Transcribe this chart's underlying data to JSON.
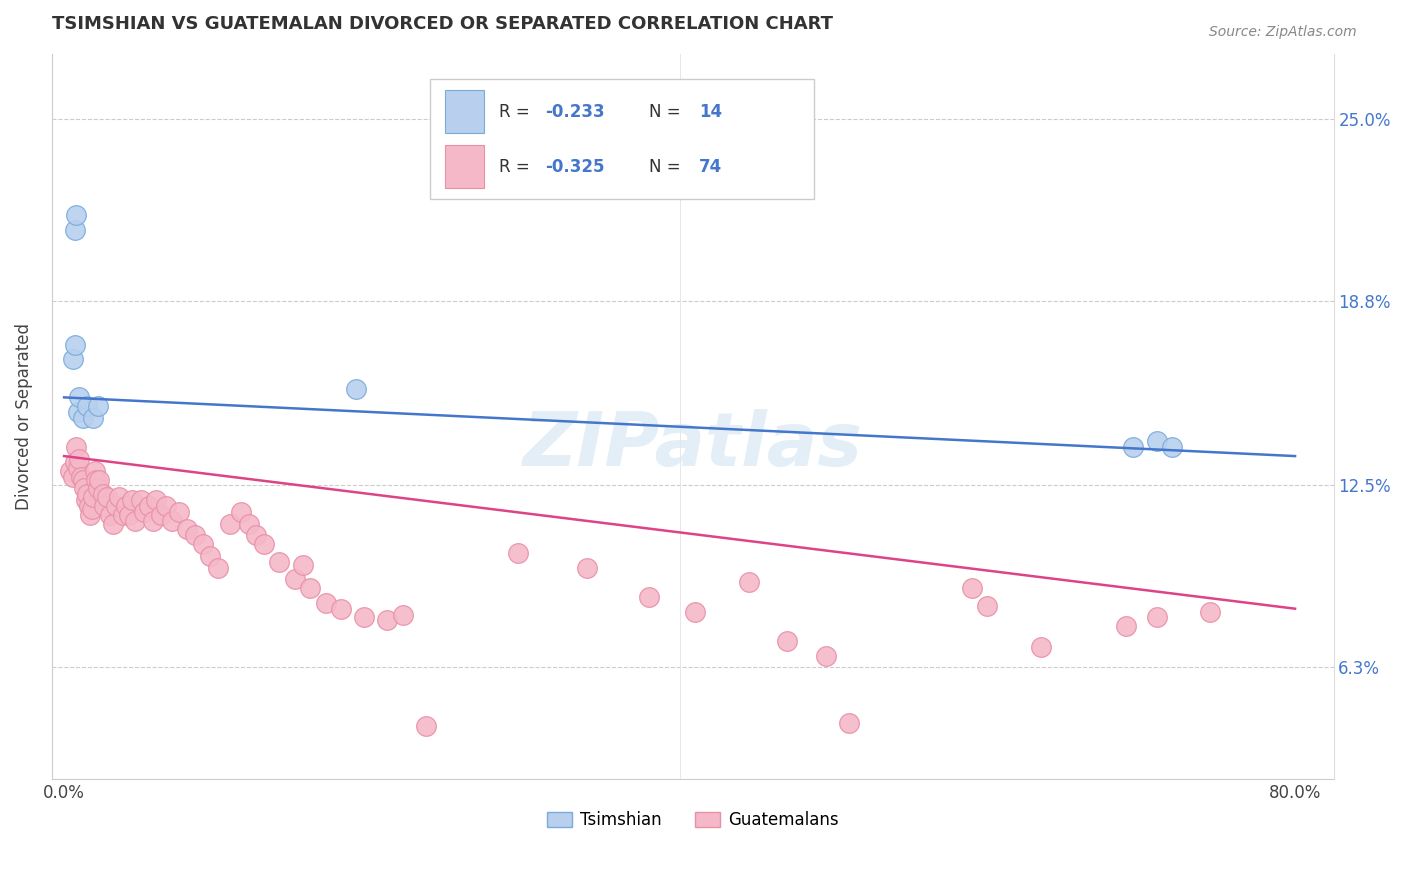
{
  "title": "TSIMSHIAN VS GUATEMALAN DIVORCED OR SEPARATED CORRELATION CHART",
  "source": "Source: ZipAtlas.com",
  "ylabel": "Divorced or Separated",
  "yticks": [
    0.063,
    0.125,
    0.188,
    0.25
  ],
  "ytick_labels": [
    "6.3%",
    "12.5%",
    "18.8%",
    "25.0%"
  ],
  "xlim": [
    -0.008,
    0.825
  ],
  "ylim": [
    0.025,
    0.272
  ],
  "blue_color": "#b8d0ee",
  "blue_edge_color": "#7aabdd",
  "pink_color": "#f5b8c8",
  "pink_edge_color": "#e890a8",
  "blue_line_color": "#4477cc",
  "pink_line_color": "#dd4488",
  "text_color": "#4477cc",
  "watermark": "ZIPatlas",
  "R_blue": -0.233,
  "N_blue": 14,
  "R_pink": -0.325,
  "N_pink": 74,
  "tsimshian_x": [
    0.007,
    0.008,
    0.006,
    0.007,
    0.009,
    0.01,
    0.012,
    0.015,
    0.019,
    0.022,
    0.19,
    0.695,
    0.71,
    0.72
  ],
  "tsimshian_y": [
    0.212,
    0.217,
    0.168,
    0.173,
    0.15,
    0.155,
    0.148,
    0.152,
    0.148,
    0.152,
    0.158,
    0.138,
    0.14,
    0.138
  ],
  "guatemalan_x": [
    0.004,
    0.006,
    0.007,
    0.008,
    0.009,
    0.01,
    0.011,
    0.012,
    0.013,
    0.014,
    0.015,
    0.016,
    0.017,
    0.018,
    0.019,
    0.02,
    0.021,
    0.022,
    0.023,
    0.025,
    0.026,
    0.028,
    0.03,
    0.032,
    0.034,
    0.036,
    0.038,
    0.04,
    0.042,
    0.044,
    0.046,
    0.05,
    0.052,
    0.055,
    0.058,
    0.06,
    0.063,
    0.066,
    0.07,
    0.075,
    0.08,
    0.085,
    0.09,
    0.095,
    0.1,
    0.108,
    0.115,
    0.12,
    0.125,
    0.13,
    0.14,
    0.15,
    0.155,
    0.16,
    0.17,
    0.18,
    0.195,
    0.21,
    0.22,
    0.235,
    0.295,
    0.34,
    0.38,
    0.41,
    0.445,
    0.47,
    0.495,
    0.51,
    0.59,
    0.6,
    0.635,
    0.69,
    0.71,
    0.745
  ],
  "guatemalan_y": [
    0.13,
    0.128,
    0.133,
    0.138,
    0.131,
    0.134,
    0.128,
    0.127,
    0.124,
    0.12,
    0.122,
    0.118,
    0.115,
    0.117,
    0.121,
    0.13,
    0.127,
    0.124,
    0.127,
    0.122,
    0.118,
    0.121,
    0.115,
    0.112,
    0.118,
    0.121,
    0.115,
    0.118,
    0.115,
    0.12,
    0.113,
    0.12,
    0.116,
    0.118,
    0.113,
    0.12,
    0.115,
    0.118,
    0.113,
    0.116,
    0.11,
    0.108,
    0.105,
    0.101,
    0.097,
    0.112,
    0.116,
    0.112,
    0.108,
    0.105,
    0.099,
    0.093,
    0.098,
    0.09,
    0.085,
    0.083,
    0.08,
    0.079,
    0.081,
    0.043,
    0.102,
    0.097,
    0.087,
    0.082,
    0.092,
    0.072,
    0.067,
    0.044,
    0.09,
    0.084,
    0.07,
    0.077,
    0.08,
    0.082
  ]
}
